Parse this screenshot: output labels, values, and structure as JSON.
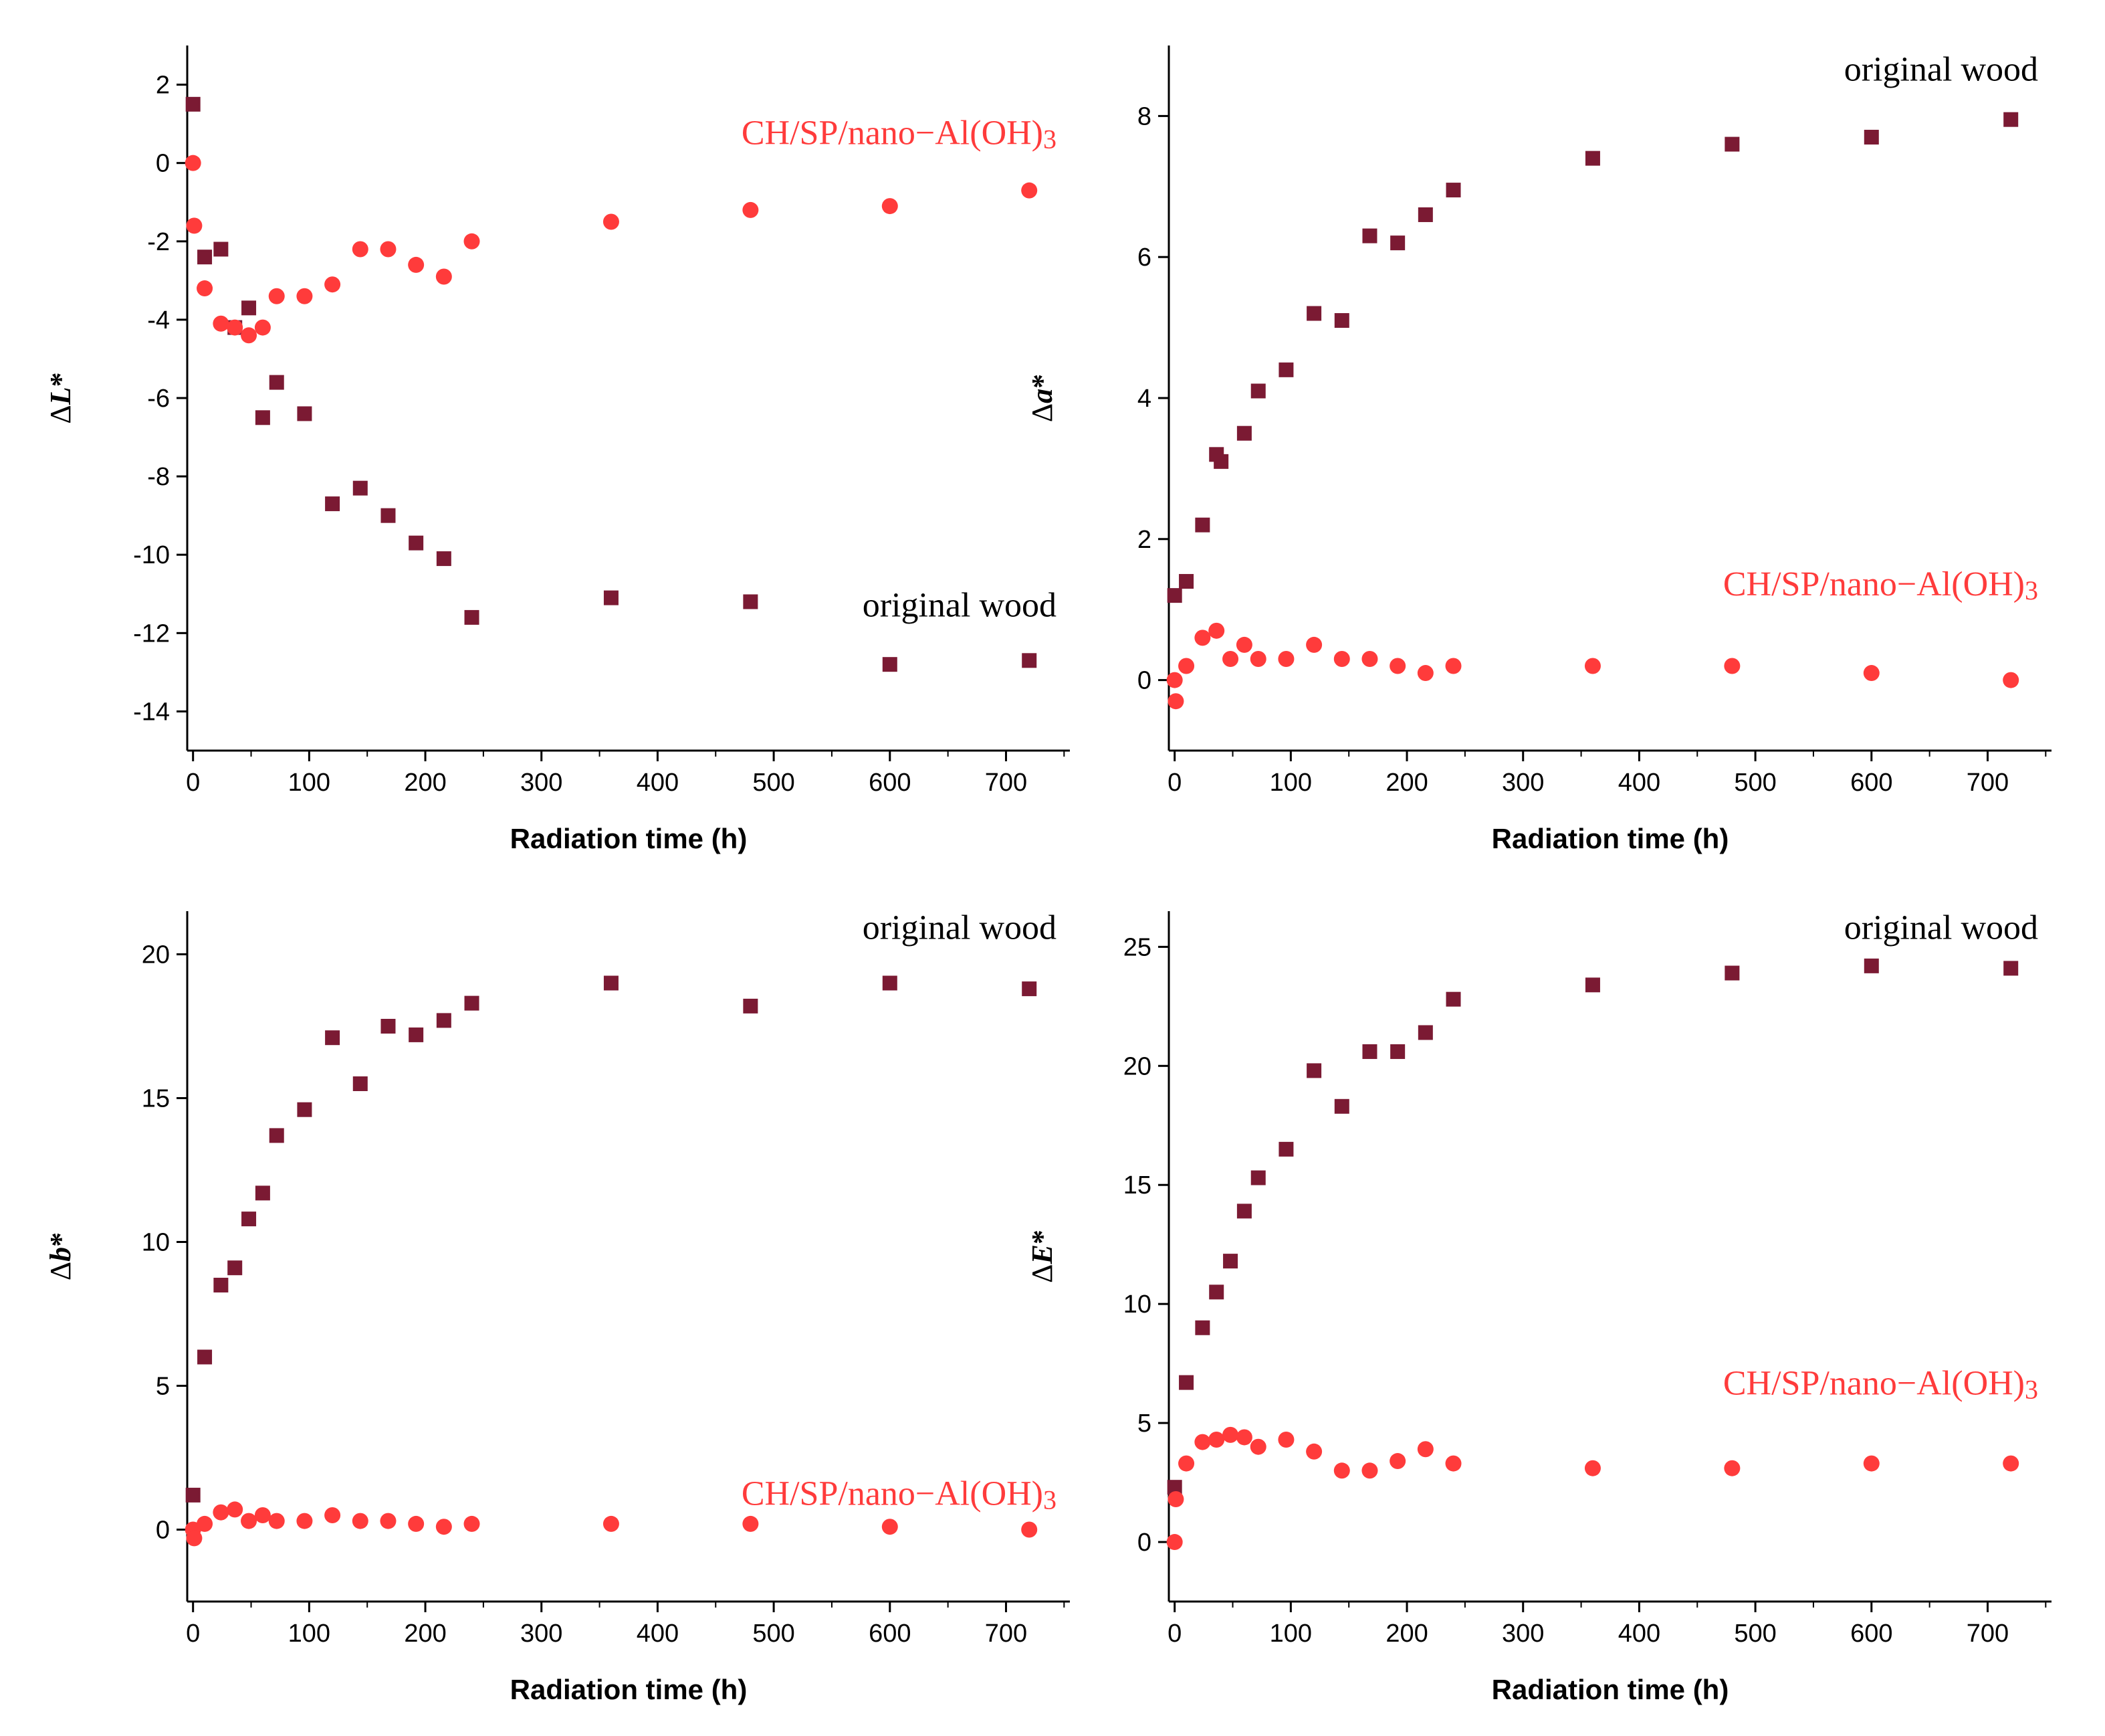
{
  "chart_data": [
    {
      "id": "dL",
      "type": "scatter",
      "ylabel": {
        "prefix": "Δ",
        "var": "L",
        "suffix": "*"
      },
      "xlabel": "Radiation time (h)",
      "xlim": [
        -5,
        755
      ],
      "ylim": [
        -15,
        3
      ],
      "xticks": [
        0,
        100,
        200,
        300,
        400,
        500,
        600,
        700
      ],
      "yticks": [
        2,
        0,
        -2,
        -4,
        -6,
        -8,
        -10,
        -12,
        -14
      ],
      "grid": false,
      "series": [
        {
          "name": "original wood",
          "marker": "square",
          "color": "#7b1a33",
          "label_pos": "bottom-right",
          "x": [
            0,
            10,
            24,
            36,
            48,
            60,
            72,
            96,
            120,
            144,
            168,
            192,
            216,
            240,
            360,
            480,
            600,
            720
          ],
          "y": [
            1.5,
            -2.4,
            -2.2,
            -4.2,
            -3.7,
            -6.5,
            -5.6,
            -6.4,
            -8.7,
            -8.3,
            -9.0,
            -9.7,
            -10.1,
            -11.6,
            -11.1,
            -11.2,
            -12.8,
            -12.7
          ]
        },
        {
          "name": "CH/SP/nano−Al(OH)3",
          "marker": "circle",
          "color": "#ff3b3b",
          "label_pos": "top-right",
          "x": [
            0,
            1,
            10,
            24,
            36,
            48,
            60,
            72,
            96,
            120,
            144,
            168,
            192,
            216,
            240,
            360,
            480,
            600,
            720
          ],
          "y": [
            0,
            -1.6,
            -3.2,
            -4.1,
            -4.2,
            -4.4,
            -4.2,
            -3.4,
            -3.4,
            -3.1,
            -2.2,
            -2.2,
            -2.6,
            -2.9,
            -2.0,
            -1.5,
            -1.2,
            -1.1,
            -0.7
          ]
        }
      ]
    },
    {
      "id": "da",
      "type": "scatter",
      "ylabel": {
        "prefix": "Δ",
        "var": "a",
        "suffix": "*"
      },
      "xlabel": "Radiation time (h)",
      "xlim": [
        -5,
        755
      ],
      "ylim": [
        -1,
        9
      ],
      "xticks": [
        0,
        100,
        200,
        300,
        400,
        500,
        600,
        700
      ],
      "yticks": [
        0,
        2,
        4,
        6,
        8
      ],
      "grid": false,
      "series": [
        {
          "name": "original wood",
          "marker": "square",
          "color": "#7b1a33",
          "label_pos": "top-right",
          "x": [
            0,
            10,
            24,
            36,
            40,
            60,
            72,
            96,
            120,
            144,
            168,
            192,
            216,
            240,
            360,
            480,
            600,
            720
          ],
          "y": [
            1.2,
            1.4,
            2.2,
            3.2,
            3.1,
            3.5,
            4.1,
            4.4,
            5.2,
            5.1,
            6.3,
            6.2,
            6.6,
            6.95,
            7.4,
            7.6,
            7.7,
            7.95
          ]
        },
        {
          "name": "CH/SP/nano−Al(OH)3",
          "marker": "circle",
          "color": "#ff3b3b",
          "label_pos": "middle-right",
          "x": [
            0,
            1,
            10,
            24,
            36,
            48,
            60,
            72,
            96,
            120,
            144,
            168,
            192,
            216,
            240,
            360,
            480,
            600,
            720
          ],
          "y": [
            0,
            -0.3,
            0.2,
            0.6,
            0.7,
            0.3,
            0.5,
            0.3,
            0.3,
            0.5,
            0.3,
            0.3,
            0.2,
            0.1,
            0.2,
            0.2,
            0.2,
            0.1,
            0.0
          ]
        }
      ]
    },
    {
      "id": "db",
      "type": "scatter",
      "ylabel": {
        "prefix": "Δ",
        "var": "b",
        "suffix": "*"
      },
      "xlabel": "Radiation time (h)",
      "xlim": [
        -5,
        755
      ],
      "ylim": [
        -2.5,
        21.5
      ],
      "xticks": [
        0,
        100,
        200,
        300,
        400,
        500,
        600,
        700
      ],
      "yticks": [
        0,
        5,
        10,
        15,
        20
      ],
      "grid": false,
      "series": [
        {
          "name": "original wood",
          "marker": "square",
          "color": "#7b1a33",
          "label_pos": "top-right",
          "x": [
            0,
            10,
            24,
            36,
            48,
            60,
            72,
            96,
            120,
            144,
            168,
            192,
            216,
            240,
            360,
            480,
            600,
            720
          ],
          "y": [
            1.2,
            6.0,
            8.5,
            9.1,
            10.8,
            11.7,
            13.7,
            14.6,
            17.1,
            15.5,
            17.5,
            17.2,
            17.7,
            18.3,
            19.0,
            18.2,
            19.0,
            18.8
          ]
        },
        {
          "name": "CH/SP/nano−Al(OH)3",
          "marker": "circle",
          "color": "#ff3b3b",
          "label_pos": "bottom-right",
          "x": [
            0,
            1,
            10,
            24,
            36,
            48,
            60,
            72,
            96,
            120,
            144,
            168,
            192,
            216,
            240,
            360,
            480,
            600,
            720
          ],
          "y": [
            0,
            -0.3,
            0.2,
            0.6,
            0.7,
            0.3,
            0.5,
            0.3,
            0.3,
            0.5,
            0.3,
            0.3,
            0.2,
            0.1,
            0.2,
            0.2,
            0.2,
            0.1,
            0.0
          ]
        }
      ]
    },
    {
      "id": "dE",
      "type": "scatter",
      "ylabel": {
        "prefix": "Δ",
        "var": "E",
        "suffix": "*"
      },
      "xlabel": "Radiation time (h)",
      "xlim": [
        -5,
        755
      ],
      "ylim": [
        -2.5,
        26.5
      ],
      "xticks": [
        0,
        100,
        200,
        300,
        400,
        500,
        600,
        700
      ],
      "yticks": [
        0,
        5,
        10,
        15,
        20,
        25
      ],
      "grid": false,
      "series": [
        {
          "name": "original wood",
          "marker": "square",
          "color": "#7b1a33",
          "label_pos": "top-right",
          "x": [
            0,
            10,
            24,
            36,
            48,
            60,
            72,
            96,
            120,
            144,
            168,
            192,
            216,
            240,
            360,
            480,
            600,
            720
          ],
          "y": [
            2.3,
            6.7,
            9.0,
            10.5,
            11.8,
            13.9,
            15.3,
            16.5,
            19.8,
            18.3,
            20.6,
            20.6,
            21.4,
            22.8,
            23.4,
            23.9,
            24.2,
            24.1
          ]
        },
        {
          "name": "CH/SP/nano−Al(OH)3",
          "marker": "circle",
          "color": "#ff3b3b",
          "label_pos": "middle-right",
          "x": [
            0,
            1,
            10,
            24,
            36,
            48,
            60,
            72,
            96,
            120,
            144,
            168,
            192,
            216,
            240,
            360,
            480,
            600,
            720
          ],
          "y": [
            0,
            1.8,
            3.3,
            4.2,
            4.3,
            4.5,
            4.4,
            4.0,
            4.3,
            3.8,
            3.0,
            3.0,
            3.4,
            3.9,
            3.3,
            3.1,
            3.1,
            3.3,
            3.3
          ]
        }
      ]
    }
  ]
}
